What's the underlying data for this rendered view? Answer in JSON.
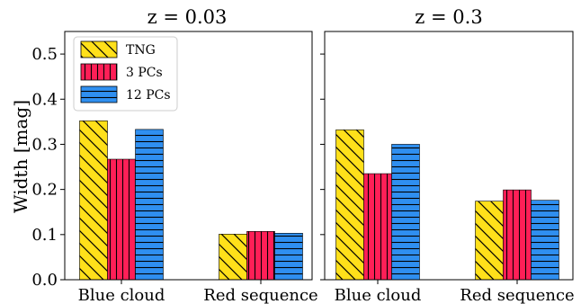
{
  "chart_data": {
    "type": "bar",
    "ylabel": "Width [mag]",
    "ylim": [
      0,
      0.55
    ],
    "yticks": [
      "0.0",
      "0.1",
      "0.2",
      "0.3",
      "0.4",
      "0.5"
    ],
    "categories": [
      "Blue cloud",
      "Red sequence"
    ],
    "legend": {
      "placement": "top-left",
      "panel": 0
    },
    "series_style": [
      {
        "name": "TNG",
        "color": "#FFE01A",
        "hatch": "diagonal"
      },
      {
        "name": "3 PCs",
        "color": "#FF1F57",
        "hatch": "vertical"
      },
      {
        "name": "12 PCs",
        "color": "#2F8FF0",
        "hatch": "horizontal"
      }
    ],
    "panels": [
      {
        "title_text": "z = 0.03",
        "series": [
          {
            "name": "TNG",
            "values": [
              0.352,
              0.101
            ]
          },
          {
            "name": "3 PCs",
            "values": [
              0.267,
              0.107
            ]
          },
          {
            "name": "12 PCs",
            "values": [
              0.333,
              0.103
            ]
          }
        ]
      },
      {
        "title_text": "z = 0.3",
        "series": [
          {
            "name": "TNG",
            "values": [
              0.332,
              0.174
            ]
          },
          {
            "name": "3 PCs",
            "values": [
              0.235,
              0.199
            ]
          },
          {
            "name": "12 PCs",
            "values": [
              0.3,
              0.176
            ]
          }
        ]
      }
    ]
  }
}
